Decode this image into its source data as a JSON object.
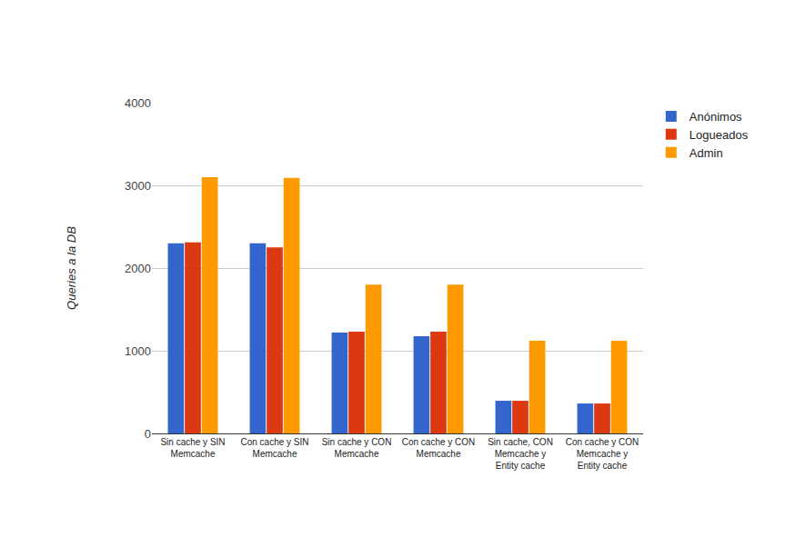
{
  "chart_data": {
    "type": "bar",
    "y_label": "Queries a la DB",
    "categories": [
      "Sin cache y SIN Memcache",
      "Con cache y SIN Memcache",
      "Sin cache y CON Memcache",
      "Con cache y CON Memcache",
      "Sin cache, CON Memcache y Entity cache",
      "Con cache y CON Memcache y Entity cache"
    ],
    "series": [
      {
        "name": "Anónimos",
        "color": "#3366cc",
        "values": [
          2300,
          2300,
          1220,
          1175,
          395,
          362
        ]
      },
      {
        "name": "Logueados",
        "color": "#dc3912",
        "values": [
          2310,
          2250,
          1230,
          1230,
          395,
          362
        ]
      },
      {
        "name": "Admin",
        "color": "#ff9900",
        "values": [
          3100,
          3090,
          1800,
          1800,
          1120,
          1120
        ]
      }
    ],
    "ylim": [
      0,
      4000
    ],
    "yticks": [
      0,
      1000,
      2000,
      3000,
      4000
    ],
    "grid": true,
    "legend": "top-right"
  }
}
